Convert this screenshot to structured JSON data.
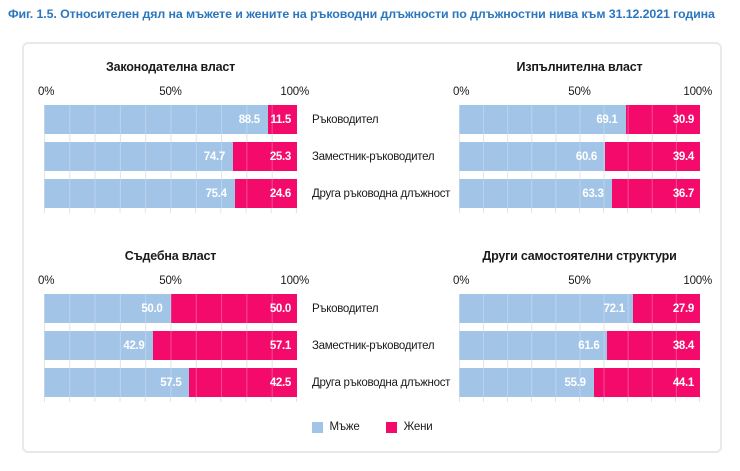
{
  "figure_title": "Фиг. 1.5. Относителен дял на мъжете и жените на ръководни длъжности по длъжностни нива към 31.12.2021 година",
  "colors": {
    "men": "#A1C4E7",
    "women": "#F30A6A",
    "title_blue": "#2B77BE",
    "gridline": "#E3E3E3",
    "frame_border": "#E9E9E9",
    "value_text": "#FFFFFF"
  },
  "legend": {
    "items": [
      {
        "label": "Мъже",
        "color": "#A1C4E7"
      },
      {
        "label": "Жени",
        "color": "#F30A6A"
      }
    ],
    "position": "bottom-center"
  },
  "chart_data": [
    {
      "type": "bar",
      "orientation": "horizontal",
      "stacked": true,
      "title": "Законодателна власт",
      "categories": [
        "Ръководител",
        "Заместник-ръководител",
        "Друга ръководна длъжност"
      ],
      "series": [
        {
          "name": "Мъже",
          "values": [
            88.5,
            74.7,
            75.4
          ]
        },
        {
          "name": "Жени",
          "values": [
            11.5,
            25.3,
            24.6
          ]
        }
      ],
      "xlim": [
        0,
        100
      ],
      "x_ticks": [
        "0%",
        "50%",
        "100%"
      ],
      "grid": true
    },
    {
      "type": "bar",
      "orientation": "horizontal",
      "stacked": true,
      "title": "Изпълнителна власт",
      "categories": [
        "Ръководител",
        "Заместник-ръководител",
        "Друга ръководна длъжност"
      ],
      "series": [
        {
          "name": "Мъже",
          "values": [
            69.1,
            60.6,
            63.3
          ]
        },
        {
          "name": "Жени",
          "values": [
            30.9,
            39.4,
            36.7
          ]
        }
      ],
      "xlim": [
        0,
        100
      ],
      "x_ticks": [
        "0%",
        "50%",
        "100%"
      ],
      "grid": true
    },
    {
      "type": "bar",
      "orientation": "horizontal",
      "stacked": true,
      "title": "Съдебна власт",
      "categories": [
        "Ръководител",
        "Заместник-ръководител",
        "Друга ръководна длъжност"
      ],
      "series": [
        {
          "name": "Мъже",
          "values": [
            50.0,
            42.9,
            57.5
          ]
        },
        {
          "name": "Жени",
          "values": [
            50.0,
            57.1,
            42.5
          ]
        }
      ],
      "xlim": [
        0,
        100
      ],
      "x_ticks": [
        "0%",
        "50%",
        "100%"
      ],
      "grid": true
    },
    {
      "type": "bar",
      "orientation": "horizontal",
      "stacked": true,
      "title": "Други самостоятелни структури",
      "categories": [
        "Ръководител",
        "Заместник-ръководител",
        "Друга ръководна длъжност"
      ],
      "series": [
        {
          "name": "Мъже",
          "values": [
            72.1,
            61.6,
            55.9
          ]
        },
        {
          "name": "Жени",
          "values": [
            27.9,
            38.4,
            44.1
          ]
        }
      ],
      "xlim": [
        0,
        100
      ],
      "x_ticks": [
        "0%",
        "50%",
        "100%"
      ],
      "grid": true
    }
  ]
}
